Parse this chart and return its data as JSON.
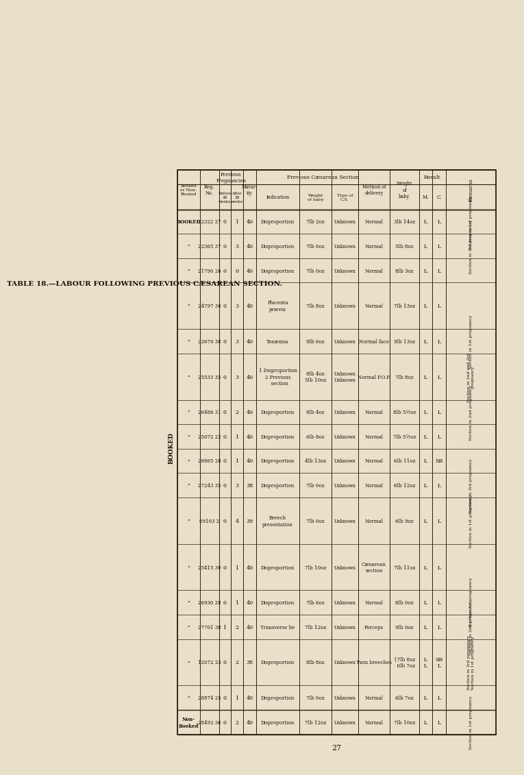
{
  "title": "TABLE 18.—LABOUR FOLLOWING PREVIOUS CÆSAREAN SECTION.",
  "page_number": "27",
  "bg": "#e8e0c8",
  "rows": [
    [
      "BOOKED",
      "22322 27",
      "0",
      "1",
      "40",
      "Disproportion",
      "7lb 2oz",
      "Unknown",
      "Normal",
      "3lb 14oz",
      "L",
      "L",
      "Section in 1st pregnancy"
    ],
    [
      "\"",
      "22365 37",
      "0",
      "3",
      "40",
      "Disproportion",
      "7lb 0oz",
      "Unknown",
      "Normal",
      "5lb 8oz",
      "L",
      "L",
      "Section in 3rd pregnancy"
    ],
    [
      "\"",
      "21790 26",
      "0",
      "0",
      "40",
      "Disproportion",
      "7lb 0oz",
      "Unknown",
      "Normal",
      "8lb 3oz",
      "L",
      "L",
      ""
    ],
    [
      "\"",
      "24797 30",
      "0",
      "3",
      "40",
      "Placenta\nprævia",
      "7lb 8oz",
      "Unknown",
      "Normal",
      "7lb 13oz",
      "L",
      "L",
      ""
    ],
    [
      "\"",
      "22679 38",
      "0",
      "3",
      "40",
      "Toxæmia",
      "9lb 6oz",
      "Unknown",
      "Normal face",
      "9lb 13oz",
      "L",
      "L",
      "Section in 1st pregnancy"
    ],
    [
      "\"",
      "25533 35",
      "0",
      "3",
      "40",
      "1 Disproportion\n2 Previous\n  section",
      "8lb 4oz\n5lb 10oz",
      "Unknown\nUnknown",
      "Normal P.O.P.",
      "7lb 8oz",
      "L",
      "L",
      "Section in 2nd and 3rd\npregnancy"
    ],
    [
      "\"",
      "26486 31",
      "0",
      "2",
      "40",
      "Disproportion",
      "8lb 4oz",
      "Unknown",
      "Normal",
      "8lb 5½oz",
      "L",
      "L",
      "Section in 2nd pregnancy"
    ],
    [
      "\"",
      "25072 22",
      "0",
      "1",
      "40",
      "Disproportion",
      "6lb 8oz",
      "Unknown",
      "Normal",
      "7lb 5½oz",
      "L",
      "L",
      ""
    ],
    [
      "\"",
      "26865 28",
      "0",
      "1",
      "40",
      "Disproportion",
      "4lb 13oz",
      "Unknown",
      "Normal",
      "6lb 11oz",
      "L",
      "SB",
      ""
    ],
    [
      "\"",
      "27243 35",
      "0",
      "3",
      "38",
      "Disproportion",
      "7lb 0oz",
      "Unknown",
      "Normal",
      "6lb 12oz",
      "L",
      "L",
      "Section in 3rd pregnancy"
    ],
    [
      "\"",
      "69103 2",
      "0",
      "4",
      "39",
      "Breech\npresentation",
      "7lb 0oz",
      "Unknown",
      "Normal",
      "6lb 9oz",
      "L",
      "L",
      "Section in 1st pregnancy"
    ],
    [
      "\"",
      "25415 30",
      "0",
      "1",
      "40",
      "Disproportion",
      "7lb 10oz",
      "Unknown",
      "Cæsarean\nsection",
      "7lb 11oz",
      "L",
      "L",
      ""
    ],
    [
      "\"",
      "26930 28",
      "0",
      "1",
      "40",
      "Disproportion",
      "7lb 6oz",
      "Unknown",
      "Normal",
      "8lb 0oz",
      "L",
      "L",
      "Abortion 1st pregnancy"
    ],
    [
      "\"",
      "27701 38",
      "1",
      "2",
      "40",
      "Transverse lie",
      "7lb 12oz",
      "Unknown",
      "Forceps",
      "9lb 0oz",
      "L",
      "L",
      "Section in 2nd pregnancy"
    ],
    [
      "\"",
      "12072 23",
      "0",
      "2",
      "38",
      "Disproportion",
      "8lb 8oz",
      "Unknown",
      "Twin breeches",
      "{7lb 8oz\n  6lb 7oz",
      "L\nL",
      "SB\nL",
      "Section in 3rd pregnancy\nSection in 1st pregnancy"
    ],
    [
      "\"",
      "28874 25",
      "0",
      "1",
      "40",
      "Disproportion",
      "7lb 0oz",
      "Unknown",
      "Normal",
      "6lb 7oz",
      "L",
      "L",
      ""
    ],
    [
      "Non-\nBooked",
      "28492 36",
      "0",
      "2",
      "40",
      "Disproportion",
      "7lb 12oz",
      "Unknown",
      "Normal",
      "7lb 10oz",
      "L",
      "L",
      "Section in 1st pregnancy"
    ]
  ]
}
